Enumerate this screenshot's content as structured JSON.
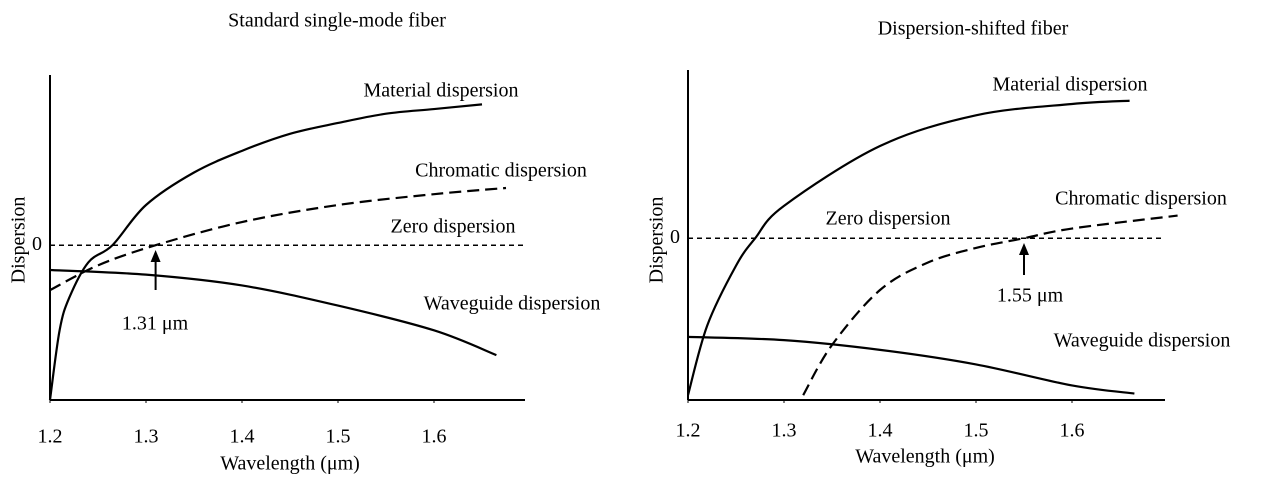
{
  "chart_data": [
    {
      "type": "line",
      "title": "Standard single-mode fiber",
      "xlabel": "Wavelength (μm)",
      "ylabel": "Dispersion",
      "xlim": [
        1.2,
        1.7
      ],
      "xticks": [
        1.2,
        1.3,
        1.4,
        1.5,
        1.6
      ],
      "ylim": [
        -10,
        11
      ],
      "yticks": [
        0
      ],
      "zero_line_style": "dashed",
      "series": [
        {
          "name": "Material dispersion",
          "color": "#000000",
          "linestyle": "solid",
          "x": [
            1.2,
            1.21,
            1.22,
            1.24,
            1.265,
            1.3,
            1.35,
            1.4,
            1.45,
            1.5,
            1.55,
            1.6,
            1.65
          ],
          "values": [
            -10,
            -5.5,
            -3.4,
            -1.1,
            0,
            2.6,
            4.7,
            6.1,
            7.2,
            7.9,
            8.5,
            8.8,
            9.1
          ]
        },
        {
          "name": "Chromatic dispersion",
          "color": "#000000",
          "linestyle": "dashed",
          "x": [
            1.2,
            1.25,
            1.31,
            1.4,
            1.5,
            1.6,
            1.675
          ],
          "values": [
            -2.9,
            -1.3,
            0,
            1.5,
            2.6,
            3.3,
            3.7
          ]
        },
        {
          "name": "Waveguide dispersion",
          "color": "#000000",
          "linestyle": "solid",
          "x": [
            1.2,
            1.3,
            1.4,
            1.5,
            1.6,
            1.665
          ],
          "values": [
            -1.6,
            -1.9,
            -2.6,
            -3.9,
            -5.5,
            -7.1
          ]
        }
      ],
      "annotations": [
        {
          "text": "Zero dispersion"
        },
        {
          "text": "1.31 μm",
          "x": 1.31,
          "arrow": true
        }
      ]
    },
    {
      "type": "line",
      "title": "Dispersion-shifted fiber",
      "xlabel": "Wavelength (μm)",
      "ylabel": "Dispersion",
      "xlim": [
        1.2,
        1.7
      ],
      "xticks": [
        1.2,
        1.3,
        1.4,
        1.5,
        1.6
      ],
      "ylim": [
        -10,
        10.4
      ],
      "yticks": [
        0
      ],
      "zero_line_style": "dashed",
      "series": [
        {
          "name": "Material dispersion",
          "color": "#000000",
          "linestyle": "solid",
          "x": [
            1.2,
            1.22,
            1.25,
            1.27,
            1.3,
            1.4,
            1.5,
            1.6,
            1.66
          ],
          "values": [
            -9.7,
            -5.4,
            -1.7,
            0,
            2.0,
            5.7,
            7.6,
            8.3,
            8.5
          ]
        },
        {
          "name": "Chromatic dispersion",
          "color": "#000000",
          "linestyle": "dashed",
          "x": [
            1.32,
            1.35,
            1.4,
            1.45,
            1.5,
            1.55,
            1.6,
            1.71
          ],
          "values": [
            -9.7,
            -6.6,
            -3.2,
            -1.5,
            -0.6,
            0,
            0.6,
            1.4
          ]
        },
        {
          "name": "Waveguide dispersion",
          "color": "#000000",
          "linestyle": "solid",
          "x": [
            1.2,
            1.3,
            1.4,
            1.5,
            1.6,
            1.665
          ],
          "values": [
            -6.1,
            -6.3,
            -6.9,
            -7.8,
            -9.1,
            -9.6
          ]
        }
      ],
      "annotations": [
        {
          "text": "Zero dispersion"
        },
        {
          "text": "1.55 μm",
          "x": 1.55,
          "arrow": true
        }
      ]
    }
  ]
}
